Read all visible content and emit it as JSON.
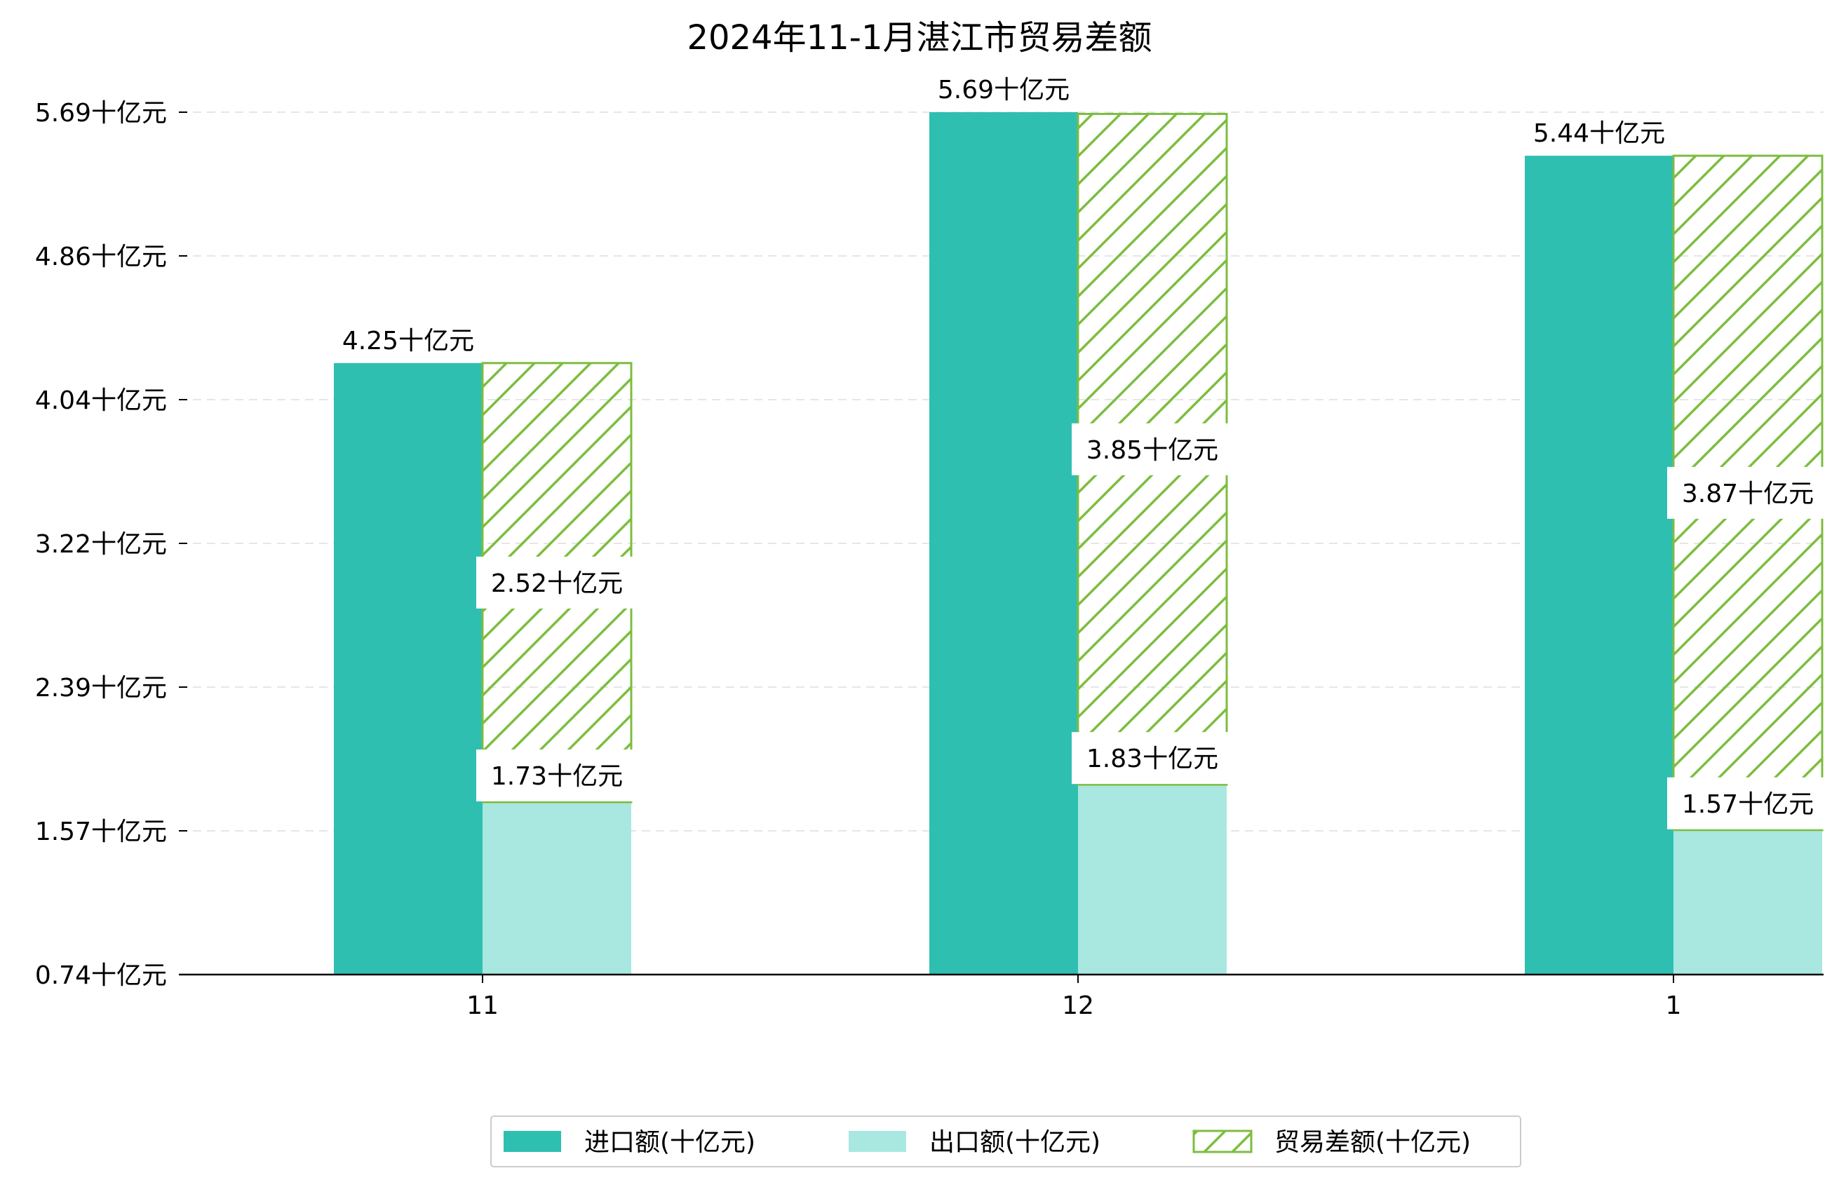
{
  "chart_data": {
    "type": "bar",
    "title": "2024年11-1月湛江市贸易差额",
    "categories": [
      "11",
      "12",
      "1"
    ],
    "unit_suffix": "十亿元",
    "yticks": [
      "0.74十亿元",
      "1.57十亿元",
      "2.39十亿元",
      "3.22十亿元",
      "4.04十亿元",
      "4.86十亿元",
      "5.69十亿元"
    ],
    "ylim": [
      0.74,
      5.69
    ],
    "grid": true,
    "legend_position": "bottom-center",
    "series": [
      {
        "name": "进口额(十亿元)",
        "values": [
          4.25,
          5.69,
          5.44
        ],
        "labels": [
          "4.25十亿元",
          "5.69十亿元",
          "5.44十亿元"
        ],
        "color": "#2fbfb0"
      },
      {
        "name": "出口额(十亿元)",
        "values": [
          1.73,
          1.83,
          1.57
        ],
        "labels": [
          "1.73十亿元",
          "1.83十亿元",
          "1.57十亿元"
        ],
        "color": "#a8e8e1"
      },
      {
        "name": "贸易差额(十亿元)",
        "values": [
          2.52,
          3.85,
          3.87
        ],
        "labels": [
          "2.52十亿元",
          "3.85十亿元",
          "3.87十亿元"
        ],
        "color": "#7dbd3f",
        "pattern": "hatch"
      }
    ]
  }
}
